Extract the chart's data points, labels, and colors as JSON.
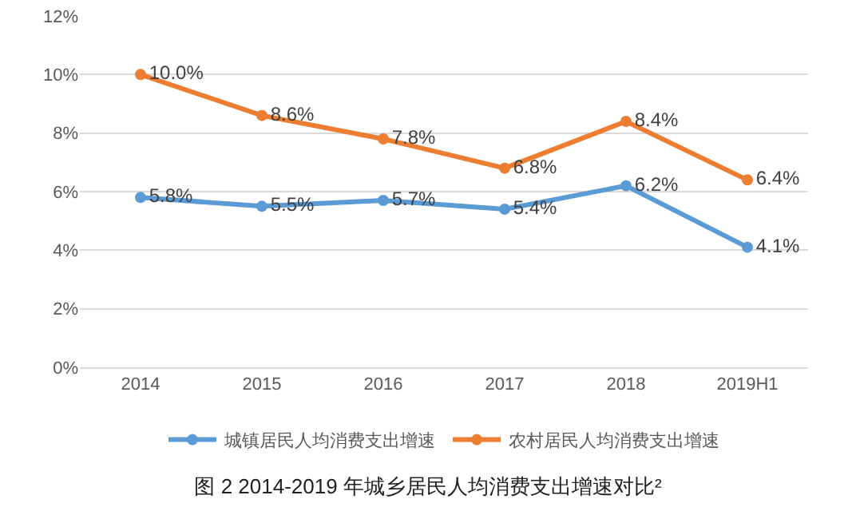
{
  "chart_data": {
    "type": "line",
    "title": "图 2 2014-2019 年城乡居民人均消费支出增速对比²",
    "categories": [
      "2014",
      "2015",
      "2016",
      "2017",
      "2018",
      "2019H1"
    ],
    "series": [
      {
        "name": "城镇居民人均消费支出增速",
        "color": "#5b9bd5",
        "values": [
          5.8,
          5.5,
          5.7,
          5.4,
          6.2,
          4.1
        ],
        "value_labels": [
          "5.8%",
          "5.5%",
          "5.7%",
          "5.4%",
          "6.2%",
          "4.1%"
        ]
      },
      {
        "name": "农村居民人均消费支出增速",
        "color": "#ed7d31",
        "values": [
          10.0,
          8.6,
          7.8,
          6.8,
          8.4,
          6.4
        ],
        "value_labels": [
          "10.0%",
          "8.6%",
          "7.8%",
          "6.8%",
          "8.4%",
          "6.4%"
        ]
      }
    ],
    "ylim": [
      0,
      12
    ],
    "yticks": [
      {
        "value": 0,
        "label": "0%"
      },
      {
        "value": 2,
        "label": "2%"
      },
      {
        "value": 4,
        "label": "4%"
      },
      {
        "value": 6,
        "label": "6%"
      },
      {
        "value": 8,
        "label": "8%"
      },
      {
        "value": 10,
        "label": "10%"
      },
      {
        "value": 12,
        "label": "12%"
      }
    ],
    "grid": "y",
    "legend": "bottom",
    "marker": "circle",
    "line_style": "solid"
  }
}
